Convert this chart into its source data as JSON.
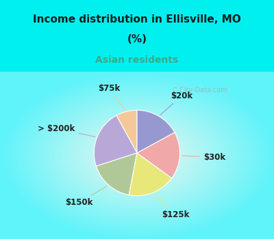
{
  "title_line1": "Income distribution in Ellisville, MO",
  "title_line2": "(%)",
  "subtitle": "Asian residents",
  "title_color": "#1a1a1a",
  "subtitle_color": "#3aaa8a",
  "background_top_color": "#00f0f0",
  "chart_bg_color": "#e8f5ee",
  "labels": [
    "$75k",
    "> $200k",
    "$150k",
    "$125k",
    "$30k",
    "$20k"
  ],
  "sizes": [
    8,
    22,
    17,
    18,
    18,
    17
  ],
  "colors": [
    "#f5c89a",
    "#b8a8d8",
    "#b0c898",
    "#e8e87a",
    "#f0a8a8",
    "#9898d0"
  ],
  "label_color": "#222222",
  "watermark": "City-Data.com",
  "startangle": 90,
  "label_fontsize": 8.5
}
